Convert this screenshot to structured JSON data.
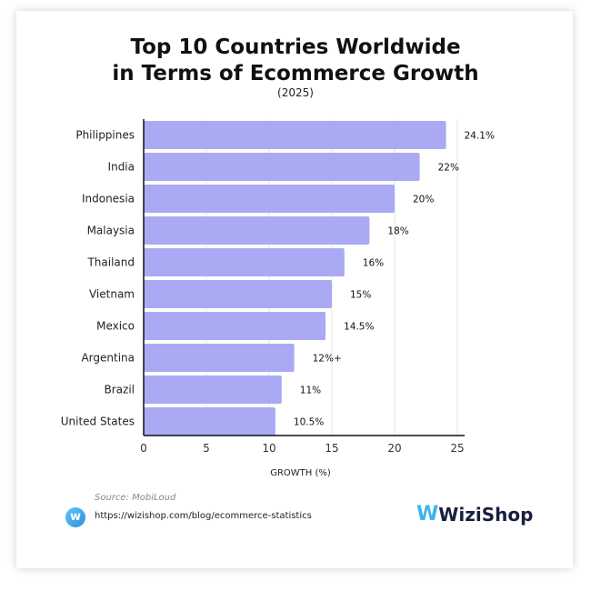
{
  "chart_data": {
    "type": "bar",
    "orientation": "horizontal",
    "title_line1": "Top 10 Countries Worldwide",
    "title_line2": "in Terms of Ecommerce Growth",
    "subtitle": "(2025)",
    "categories": [
      "Philippines",
      "India",
      "Indonesia",
      "Malaysia",
      "Thailand",
      "Vietnam",
      "Mexico",
      "Argentina",
      "Brazil",
      "United States"
    ],
    "values": [
      24.1,
      22,
      20,
      18,
      16,
      15,
      14.5,
      12,
      11,
      10.5
    ],
    "data_labels": [
      "24.1%",
      "22%",
      "20%",
      "18%",
      "16%",
      "15%",
      "14.5%",
      "12%+",
      "11%",
      "10.5%"
    ],
    "xlabel": "GROWTH (%)",
    "xlim": [
      0,
      25
    ],
    "xticks": [
      "0",
      "5",
      "10",
      "15",
      "20",
      "25"
    ],
    "grid": "vertical",
    "bar_color": "#aaaaf4"
  },
  "footer": {
    "source": "Source: MobiLoud",
    "url": "https://wizishop.com/blog/ecommerce-statistics",
    "brand": "WiziShop",
    "favicon_glyph": "w",
    "logo_glyph": "W",
    "brand_color": "#3bb6ea"
  }
}
